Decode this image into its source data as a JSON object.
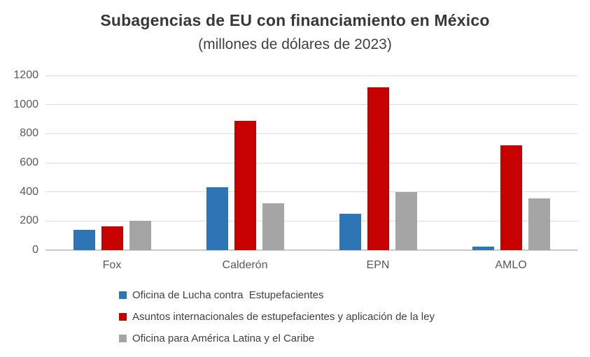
{
  "chart_data": {
    "type": "bar",
    "title": "Subagencias de EU con financiamiento en México",
    "subtitle": "(millones de dólares de 2023)",
    "categories": [
      "Fox",
      "Calderón",
      "EPN",
      "AMLO"
    ],
    "series": [
      {
        "name": "Oficina de Lucha contra  Estupefacientes",
        "color": "#2E75B6",
        "values": [
          140,
          430,
          250,
          25
        ]
      },
      {
        "name": "Asuntos internacionales de estupefacientes y aplicación de la ley",
        "color": "#C70000",
        "values": [
          165,
          890,
          1120,
          720
        ]
      },
      {
        "name": "Oficina para América Latina y el Caribe",
        "color": "#A5A5A5",
        "values": [
          200,
          320,
          400,
          355
        ]
      }
    ],
    "xlabel": "",
    "ylabel": "",
    "ylim": [
      0,
      1200
    ],
    "yticks": [
      0,
      200,
      400,
      600,
      800,
      1000,
      1200
    ],
    "grid": "horizontal",
    "legend_position": "bottom-left",
    "axis_text_color": "#595959",
    "gridline_color": "#DCDCDC"
  }
}
